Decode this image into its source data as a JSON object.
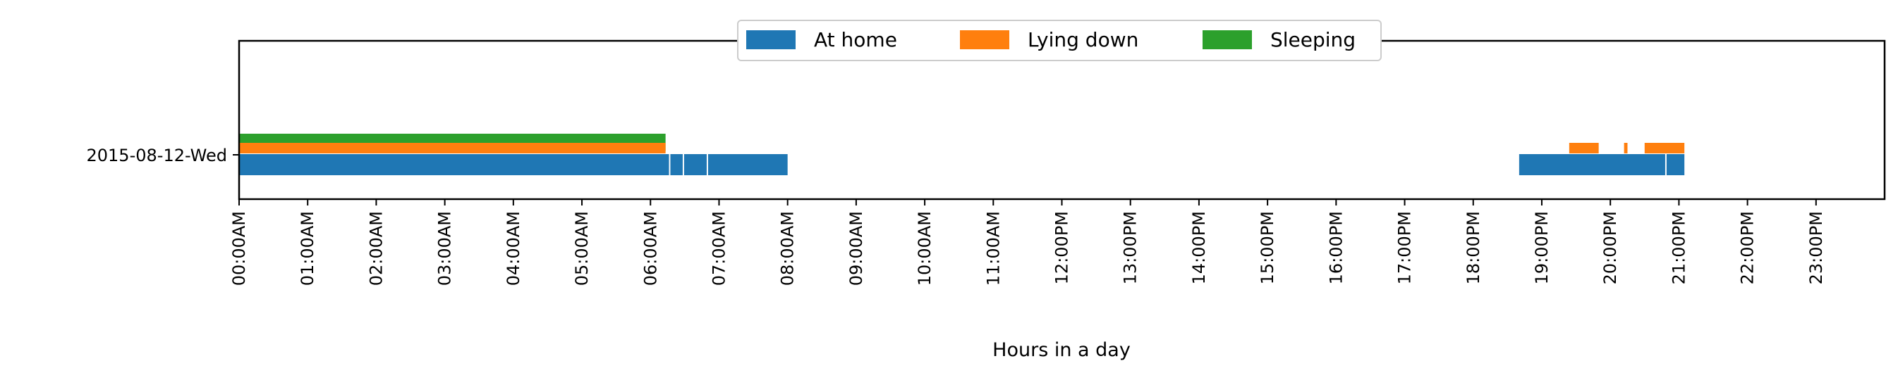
{
  "chart_data": {
    "type": "timeline",
    "title": "",
    "xlabel": "Hours in a day",
    "ylabel": "",
    "xlim": [
      0,
      24
    ],
    "row_label": "2015-08-12-Wed",
    "tick_labels": [
      "00:00AM",
      "01:00AM",
      "02:00AM",
      "03:00AM",
      "04:00AM",
      "05:00AM",
      "06:00AM",
      "07:00AM",
      "08:00AM",
      "09:00AM",
      "10:00AM",
      "11:00AM",
      "12:00PM",
      "13:00PM",
      "14:00PM",
      "15:00PM",
      "16:00PM",
      "17:00PM",
      "18:00PM",
      "19:00PM",
      "20:00PM",
      "21:00PM",
      "22:00PM",
      "23:00PM"
    ],
    "legend_position": "top-center",
    "series": [
      {
        "name": "At home",
        "color": "#1f77b4",
        "lane": 0,
        "intervals": [
          [
            0.0,
            6.27
          ],
          [
            6.29,
            6.47
          ],
          [
            6.49,
            6.82
          ],
          [
            6.84,
            8.0
          ],
          [
            18.67,
            20.8
          ],
          [
            20.82,
            21.08
          ]
        ]
      },
      {
        "name": "Lying down",
        "color": "#ff7f0e",
        "lane": 1,
        "intervals": [
          [
            0.0,
            6.22
          ],
          [
            19.4,
            19.83
          ],
          [
            20.2,
            20.25
          ],
          [
            20.5,
            21.08
          ]
        ]
      },
      {
        "name": "Sleeping",
        "color": "#2ca02c",
        "lane": 2,
        "intervals": [
          [
            0.0,
            6.22
          ]
        ]
      }
    ]
  }
}
